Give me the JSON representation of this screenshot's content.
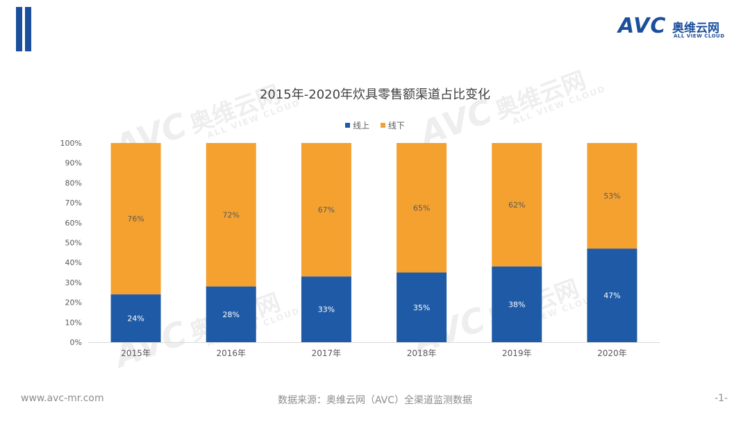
{
  "brand": {
    "logo_text": "AVC",
    "logo_cn": "奥维云网",
    "logo_en": "ALL VIEW CLOUD",
    "color": "#1b4f9c"
  },
  "watermark": {
    "avc": "AVC",
    "cn": "奥维云网",
    "en": "ALL VIEW CLOUD"
  },
  "chart_data": {
    "type": "bar",
    "stacked": true,
    "title": "2015年-2020年炊具零售额渠道占比变化",
    "categories": [
      "2015年",
      "2016年",
      "2017年",
      "2018年",
      "2019年",
      "2020年"
    ],
    "series": [
      {
        "name": "线上",
        "color": "#1f5aa6",
        "values": [
          24,
          28,
          33,
          35,
          38,
          47
        ],
        "labels": [
          "24%",
          "28%",
          "33%",
          "35%",
          "38%",
          "47%"
        ]
      },
      {
        "name": "线下",
        "color": "#f5a130",
        "values": [
          76,
          72,
          67,
          65,
          62,
          53
        ],
        "labels": [
          "76%",
          "72%",
          "67%",
          "65%",
          "62%",
          "53%"
        ]
      }
    ],
    "ylim": [
      0,
      100
    ],
    "yticks": [
      "0%",
      "10%",
      "20%",
      "30%",
      "40%",
      "50%",
      "60%",
      "70%",
      "80%",
      "90%",
      "100%"
    ],
    "legend_position": "top",
    "grid": false
  },
  "footer": {
    "website": "www.avc-mr.com",
    "source": "数据来源：奥维云网（AVC）全渠道监测数据",
    "page": "-1-"
  }
}
